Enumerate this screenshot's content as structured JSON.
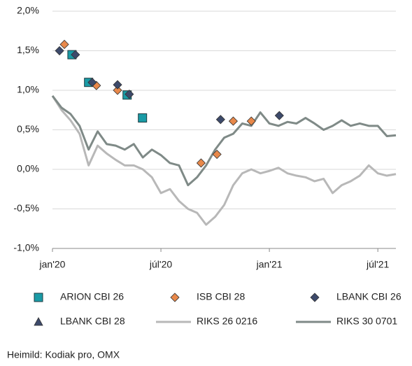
{
  "chart_data": {
    "type": "line",
    "x": [
      0,
      0.5,
      1,
      1.5,
      2,
      2.5,
      3,
      3.5,
      4,
      4.5,
      5,
      5.5,
      6,
      6.5,
      7,
      7.5,
      8,
      8.5,
      9,
      9.5,
      10,
      10.5,
      11,
      11.5,
      12,
      12.5,
      13,
      13.5,
      14,
      14.5,
      15,
      15.5,
      16,
      16.5,
      17,
      17.5,
      18,
      18.5,
      19
    ],
    "xlim": [
      0,
      19
    ],
    "xticks": [
      {
        "value": 0,
        "label": "jan'20"
      },
      {
        "value": 6,
        "label": "júl'20"
      },
      {
        "value": 12,
        "label": "jan'21"
      },
      {
        "value": 18,
        "label": "júl'21"
      }
    ],
    "ylim": [
      -1,
      2
    ],
    "yticks": [
      {
        "value": -1,
        "label": "-1,0%"
      },
      {
        "value": -0.5,
        "label": "-0,5%"
      },
      {
        "value": 0,
        "label": "0,0%"
      },
      {
        "value": 0.5,
        "label": "0,5%"
      },
      {
        "value": 1,
        "label": "1,0%"
      },
      {
        "value": 1.5,
        "label": "1,5%"
      },
      {
        "value": 2,
        "label": "2,0%"
      }
    ],
    "grid": true,
    "series": [
      {
        "name": "ARION CBI 26",
        "color": "#1a9ba6",
        "marker": "square",
        "x": [
          1.08,
          2.0,
          4.13,
          4.98
        ],
        "values": [
          1.45,
          1.1,
          0.94,
          0.65
        ]
      },
      {
        "name": "ISB CBI 28",
        "color": "#e8884a",
        "marker": "diamond",
        "x": [
          0.66,
          2.43,
          3.6,
          8.22,
          9.1,
          10.0,
          11.0
        ],
        "values": [
          1.58,
          1.06,
          1.0,
          0.08,
          0.19,
          0.61,
          0.61
        ]
      },
      {
        "name": "LBANK CBI 26",
        "color": "#3d4a6b",
        "marker": "diamond",
        "x": [
          0.39,
          1.27,
          2.2,
          3.6,
          4.25,
          9.3,
          12.55
        ],
        "values": [
          1.5,
          1.45,
          1.1,
          1.07,
          0.95,
          0.63,
          0.68
        ]
      },
      {
        "name": "LBANK CBI 28",
        "color": "#3d4a6b",
        "marker": "triangle",
        "x": [],
        "values": []
      },
      {
        "name": "RIKS 26 0216",
        "color": "#b8b8b8",
        "values": [
          0.93,
          0.75,
          0.62,
          0.45,
          0.05,
          0.3,
          0.2,
          0.12,
          0.05,
          0.05,
          0.0,
          -0.1,
          -0.3,
          -0.25,
          -0.4,
          -0.5,
          -0.55,
          -0.7,
          -0.6,
          -0.45,
          -0.2,
          -0.05,
          0.0,
          -0.05,
          -0.02,
          0.02,
          -0.05,
          -0.08,
          -0.1,
          -0.15,
          -0.12,
          -0.3,
          -0.2,
          -0.15,
          -0.08,
          0.05,
          -0.05,
          -0.08,
          -0.06
        ]
      },
      {
        "name": "RIKS 30 0701",
        "color": "#7f8a87",
        "values": [
          0.93,
          0.78,
          0.7,
          0.55,
          0.25,
          0.48,
          0.32,
          0.3,
          0.25,
          0.32,
          0.15,
          0.25,
          0.18,
          0.08,
          0.05,
          -0.2,
          -0.1,
          0.05,
          0.25,
          0.4,
          0.45,
          0.58,
          0.55,
          0.72,
          0.58,
          0.55,
          0.6,
          0.58,
          0.65,
          0.58,
          0.5,
          0.55,
          0.62,
          0.55,
          0.58,
          0.55,
          0.55,
          0.42,
          0.43
        ]
      }
    ],
    "source": "Heimild: Kodiak pro, OMX"
  }
}
